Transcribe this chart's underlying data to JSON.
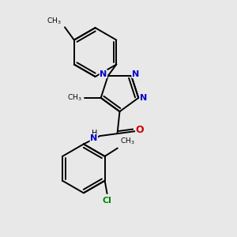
{
  "bg_color": "#e8e8e8",
  "bond_color": "#000000",
  "N_color": "#0000cc",
  "O_color": "#cc0000",
  "Cl_color": "#008800",
  "lw": 1.4,
  "figsize": [
    3.0,
    3.0
  ],
  "dpi": 100,
  "xlim": [
    0,
    10
  ],
  "ylim": [
    0,
    10
  ]
}
